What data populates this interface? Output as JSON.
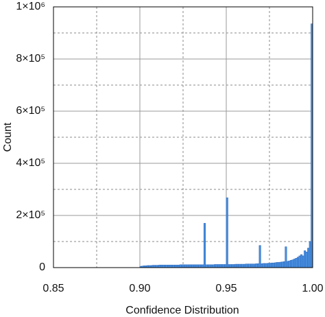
{
  "chart_data": {
    "type": "histogram",
    "xlabel": "Confidence Distribution",
    "ylabel": "Count",
    "color": "#4a8fe0",
    "edge_color": "#2563b8",
    "xlim": [
      0.85,
      1.0
    ],
    "ylim": [
      0,
      1000000
    ],
    "xticks": [
      0.85,
      {
        "value": 0.9,
        "label": "0.90"
      },
      0.95,
      {
        "value": 1.0,
        "label": "1.00"
      }
    ],
    "yticks": [
      0,
      {
        "value": 200000,
        "label": "2×10⁵"
      },
      {
        "value": 400000,
        "label": "4×10⁵"
      },
      {
        "value": 600000,
        "label": "6×10⁵"
      },
      {
        "value": 800000,
        "label": "8×10⁵"
      },
      {
        "value": 1000000,
        "label": "1×10⁶"
      }
    ],
    "x_minor_ticks": [
      0.875,
      0.925,
      0.975
    ],
    "y_minor_ticks": [
      100000,
      300000,
      500000,
      700000,
      900000
    ],
    "grid": true,
    "bins": [
      0.9,
      0.901,
      0.902,
      0.903,
      0.904,
      0.905,
      0.906,
      0.907,
      0.908,
      0.909,
      0.91,
      0.911,
      0.912,
      0.913,
      0.914,
      0.915,
      0.916,
      0.917,
      0.918,
      0.919,
      0.92,
      0.921,
      0.922,
      0.923,
      0.924,
      0.925,
      0.926,
      0.927,
      0.928,
      0.929,
      0.93,
      0.931,
      0.932,
      0.933,
      0.934,
      0.935,
      0.936,
      0.937,
      0.938,
      0.939,
      0.94,
      0.941,
      0.942,
      0.943,
      0.944,
      0.945,
      0.946,
      0.947,
      0.948,
      0.949,
      0.95,
      0.951,
      0.952,
      0.953,
      0.954,
      0.955,
      0.956,
      0.957,
      0.958,
      0.959,
      0.96,
      0.961,
      0.962,
      0.963,
      0.964,
      0.965,
      0.966,
      0.967,
      0.968,
      0.969,
      0.97,
      0.971,
      0.972,
      0.973,
      0.974,
      0.975,
      0.976,
      0.977,
      0.978,
      0.979,
      0.98,
      0.981,
      0.982,
      0.983,
      0.984,
      0.985,
      0.986,
      0.987,
      0.988,
      0.989,
      0.99,
      0.991,
      0.992,
      0.993,
      0.994,
      0.995,
      0.996,
      0.997,
      0.998,
      0.999,
      1.0
    ],
    "counts": [
      5000,
      6000,
      7000,
      7000,
      8000,
      8000,
      8000,
      9000,
      9000,
      9000,
      9000,
      10000,
      10000,
      10000,
      10000,
      10000,
      10000,
      10000,
      10000,
      10000,
      10000,
      10000,
      10000,
      11000,
      11000,
      11000,
      11000,
      11000,
      11000,
      11000,
      11000,
      11000,
      11000,
      11000,
      11000,
      11000,
      11000,
      170000,
      11000,
      11000,
      11000,
      11000,
      11000,
      12000,
      12000,
      12000,
      12000,
      12000,
      12000,
      12000,
      268000,
      12000,
      12000,
      12000,
      12000,
      13000,
      13000,
      13000,
      13000,
      13000,
      13000,
      14000,
      14000,
      14000,
      14000,
      14000,
      14000,
      15000,
      15000,
      85000,
      15000,
      16000,
      16000,
      16000,
      17000,
      17000,
      18000,
      18000,
      19000,
      20000,
      20000,
      21000,
      22000,
      23000,
      80000,
      24000,
      26000,
      28000,
      30000,
      33000,
      36000,
      40000,
      45000,
      50000,
      45000,
      65000,
      60000,
      75000,
      100000,
      935000
    ]
  }
}
